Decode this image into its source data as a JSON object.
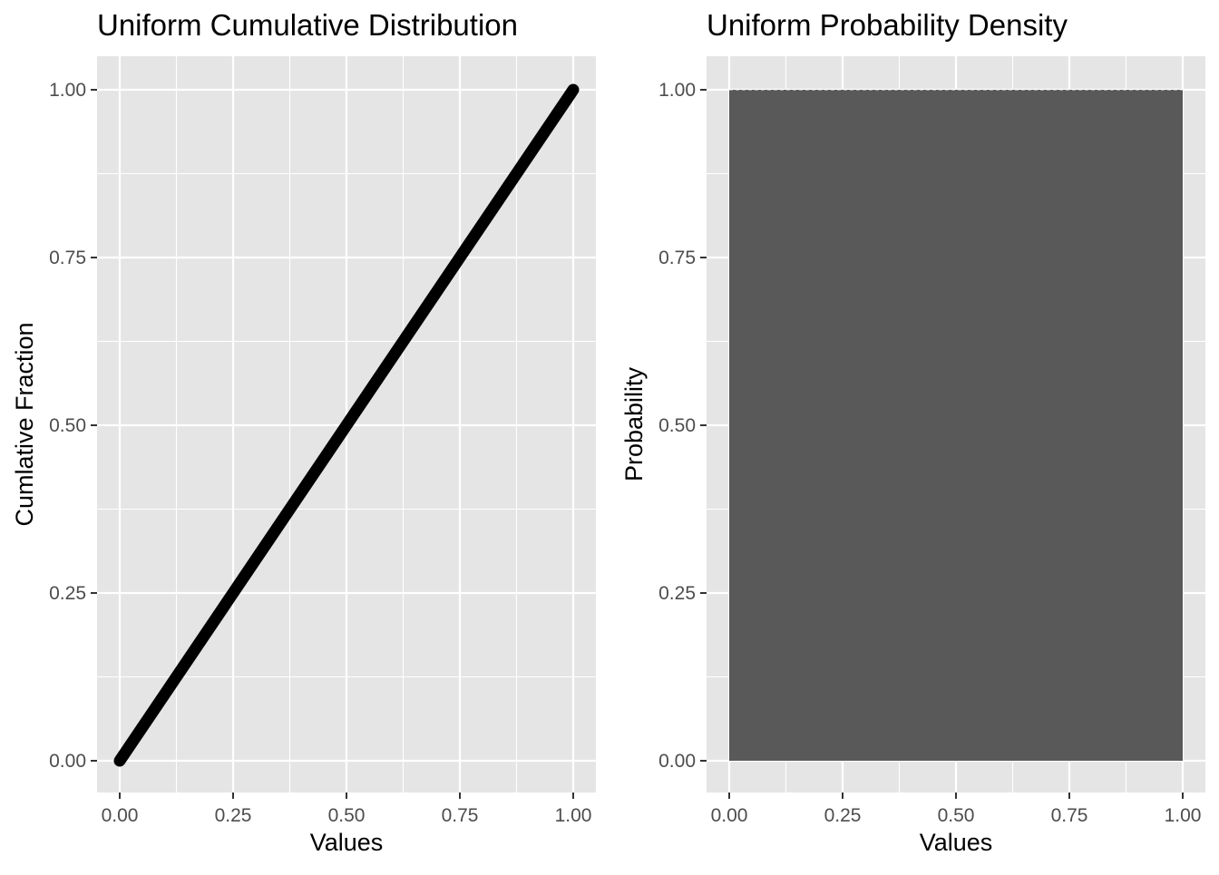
{
  "chart_data": [
    {
      "type": "line",
      "title": "Uniform Cumulative Distribution",
      "xlabel": "Values",
      "ylabel": "Cumlative Fraction",
      "xlim": [
        0,
        1
      ],
      "ylim": [
        0,
        1
      ],
      "x_ticks": [
        "0.00",
        "0.25",
        "0.50",
        "0.75",
        "1.00"
      ],
      "y_ticks": [
        "0.00",
        "0.25",
        "0.50",
        "0.75",
        "1.00"
      ],
      "grid": true,
      "series": [
        {
          "x": [
            0,
            0.25,
            0.5,
            0.75,
            1
          ],
          "y": [
            0,
            0.25,
            0.5,
            0.75,
            1
          ]
        }
      ],
      "colors": {
        "panel": "#e5e5e5",
        "grid": "#ffffff",
        "line": "#000000"
      }
    },
    {
      "type": "area",
      "title": "Uniform Probability Density",
      "xlabel": "Values",
      "ylabel": "Probability",
      "xlim": [
        0,
        1
      ],
      "ylim": [
        0,
        1
      ],
      "x_ticks": [
        "0.00",
        "0.25",
        "0.50",
        "0.75",
        "1.00"
      ],
      "y_ticks": [
        "0.00",
        "0.25",
        "0.50",
        "0.75",
        "1.00"
      ],
      "grid": true,
      "series": [
        {
          "x": [
            0,
            1
          ],
          "y": [
            1,
            1
          ]
        }
      ],
      "colors": {
        "panel": "#e5e5e5",
        "grid": "#ffffff",
        "fill": "#595959"
      }
    }
  ]
}
